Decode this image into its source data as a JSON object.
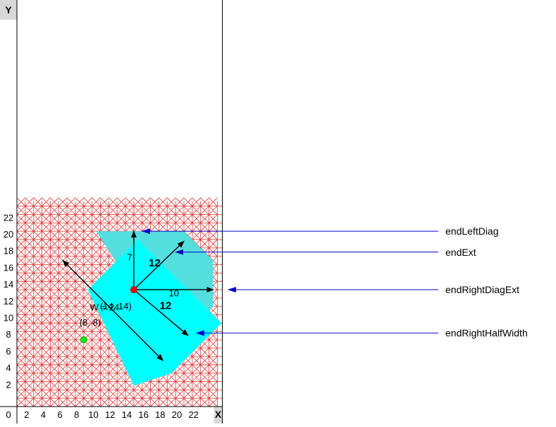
{
  "axes": {
    "x_label": "X",
    "y_label": "Y",
    "origin_label": "0",
    "x_ticks": [
      "2",
      "4",
      "6",
      "8",
      "10",
      "12",
      "14",
      "16",
      "18",
      "20",
      "22"
    ],
    "y_ticks": [
      "2",
      "4",
      "6",
      "8",
      "10",
      "12",
      "14",
      "16",
      "18",
      "20",
      "22"
    ],
    "x_range": [
      0,
      24
    ],
    "y_range": [
      0,
      24
    ]
  },
  "colors": {
    "grid_line": "#e04848",
    "grid_background": "#ffffff",
    "fill_main": "#00ffff",
    "fill_extension": "#55dede",
    "arrow": "#000000",
    "callout_arrow": "#0000cc",
    "center_point": "#ff0000",
    "point": "#00ee00"
  },
  "diagram": {
    "main_polygon": [
      [
        8.5,
        14
      ],
      [
        14.5,
        20
      ],
      [
        24.5,
        10
      ],
      [
        18.5,
        4
      ],
      [
        14,
        2.5
      ]
    ],
    "extension_polygon": [
      [
        9.5,
        21
      ],
      [
        20,
        21
      ],
      [
        23.5,
        17.5
      ],
      [
        23.5,
        12
      ],
      [
        21,
        9
      ],
      [
        14,
        14
      ]
    ],
    "center": {
      "x": 14,
      "y": 14,
      "label": "(14, 14)"
    },
    "point": {
      "x": 8,
      "y": 8,
      "label": "(8, 8)"
    },
    "arrows": [
      {
        "from": [
          14,
          14
        ],
        "to": [
          14,
          21
        ],
        "label": "7",
        "at": [
          13.5,
          17.5
        ]
      },
      {
        "from": [
          14,
          14
        ],
        "to": [
          20,
          19.8
        ],
        "label": "12",
        "at": [
          16.5,
          16.8
        ],
        "bold": true
      },
      {
        "from": [
          14,
          14
        ],
        "to": [
          23.5,
          14
        ],
        "label": "10",
        "at": [
          18.8,
          13.2
        ]
      },
      {
        "from": [
          14,
          14
        ],
        "to": [
          20.5,
          8.5
        ],
        "label": "12",
        "at": [
          17.8,
          11.7
        ],
        "bold": true
      },
      {
        "from": [
          5.5,
          17.5
        ],
        "to": [
          17.5,
          5.5
        ],
        "label": "W = 24",
        "at": [
          10.5,
          11.5
        ],
        "double": true
      }
    ]
  },
  "callouts": [
    {
      "label": "endLeftDiag",
      "target": [
        14.5,
        21
      ]
    },
    {
      "label": "endExt",
      "target": [
        18.5,
        18.5
      ]
    },
    {
      "label": "endRightDiagExt",
      "target": [
        24.8,
        14
      ]
    },
    {
      "label": "endRightHalfWidth",
      "target": [
        21.0,
        8.8
      ]
    }
  ]
}
